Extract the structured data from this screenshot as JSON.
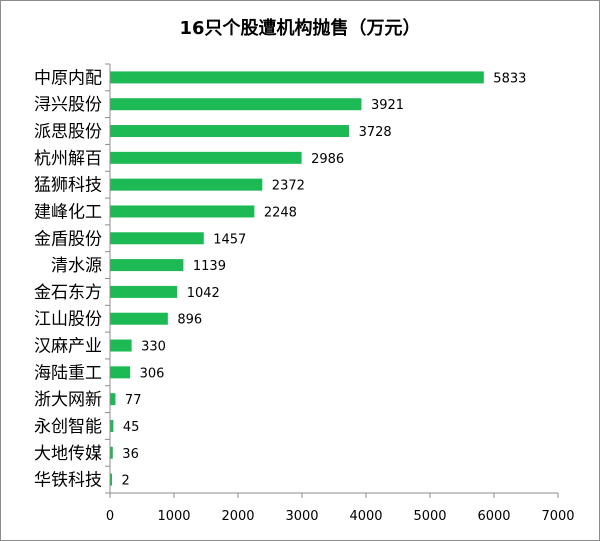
{
  "chart_data": {
    "type": "bar",
    "orientation": "horizontal",
    "title": "16只个股遭机构抛售（万元）",
    "categories": [
      "中原内配",
      "浔兴股份",
      "派思股份",
      "杭州解百",
      "猛狮科技",
      "建峰化工",
      "金盾股份",
      "清水源",
      "金石东方",
      "江山股份",
      "汉麻产业",
      "海陆重工",
      "浙大网新",
      "永创智能",
      "大地传媒",
      "华铁科技"
    ],
    "values": [
      5833,
      3921,
      3728,
      2986,
      2372,
      2248,
      1457,
      1139,
      1042,
      896,
      330,
      306,
      77,
      45,
      36,
      2
    ],
    "xlim": [
      0,
      7000
    ],
    "xticks": [
      0,
      1000,
      2000,
      3000,
      4000,
      5000,
      6000,
      7000
    ],
    "bar_color": "#1db954",
    "grid": false,
    "legend": "none"
  }
}
